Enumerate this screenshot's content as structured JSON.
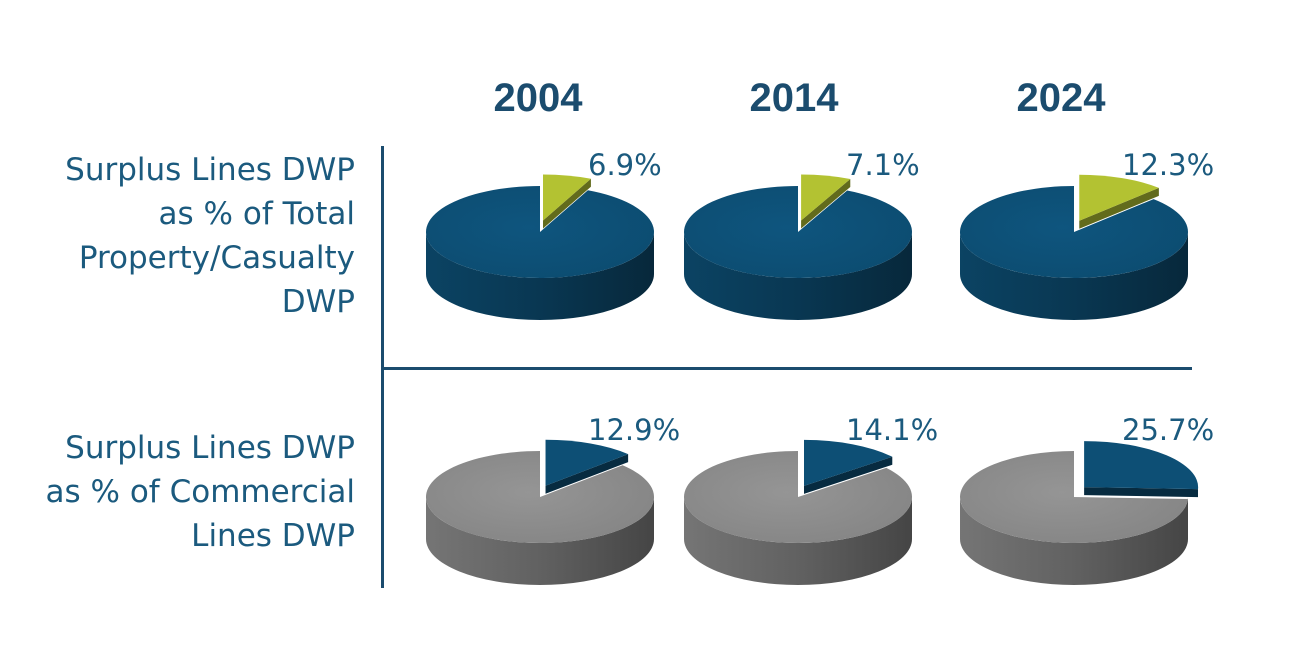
{
  "chart_data": {
    "type": "pie",
    "columns": [
      "2004",
      "2014",
      "2024"
    ],
    "rows": [
      {
        "label": "Surplus Lines DWP\nas % of Total\nProperty/Casualty\nDWP",
        "values": [
          6.9,
          7.1,
          12.3
        ],
        "value_labels": [
          "6.9%",
          "7.1%",
          "12.3%"
        ],
        "base_color": "#0d4f75",
        "slice_color": "#b3c232"
      },
      {
        "label": "Surplus Lines DWP\nas % of Commercial\nLines DWP",
        "values": [
          12.9,
          14.1,
          25.7
        ],
        "value_labels": [
          "12.9%",
          "14.1%",
          "25.7%"
        ],
        "base_color": "#8a8a8a",
        "slice_color": "#0d4f75"
      }
    ]
  }
}
